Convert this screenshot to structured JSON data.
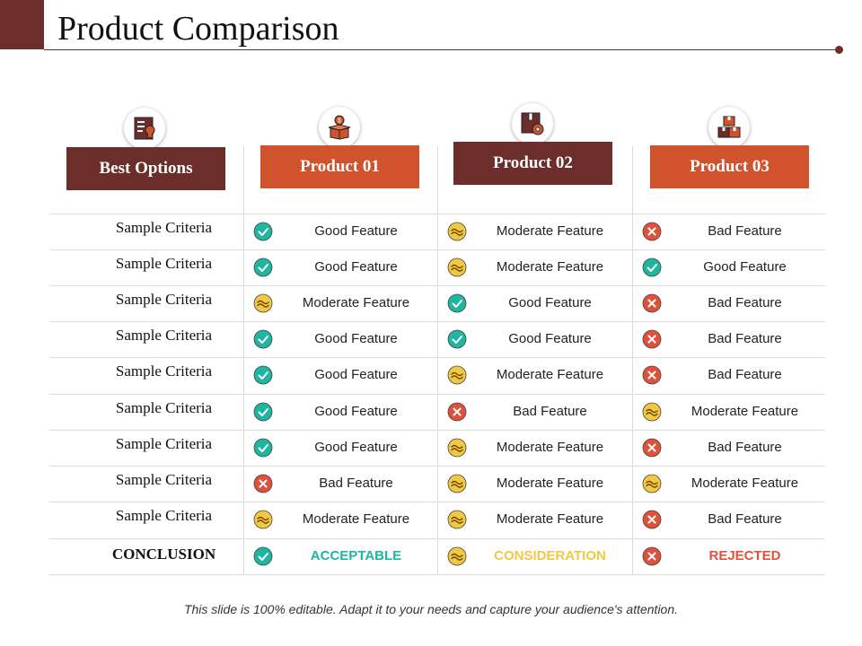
{
  "title": "Product Comparison",
  "headers": [
    {
      "label": "Best Options",
      "color": "#6b2e2a",
      "icon": "document-badge-icon"
    },
    {
      "label": "Product 01",
      "color": "#d0532e",
      "icon": "box-coin-icon"
    },
    {
      "label": "Product 02",
      "color": "#6b2e2a",
      "icon": "box-gear-icon"
    },
    {
      "label": "Product 03",
      "color": "#d0532e",
      "icon": "stacked-boxes-icon"
    }
  ],
  "rows": [
    {
      "criteria": "Sample Criteria",
      "cells": [
        {
          "status": "good",
          "text": "Good Feature"
        },
        {
          "status": "moderate",
          "text": "Moderate Feature"
        },
        {
          "status": "bad",
          "text": "Bad Feature"
        }
      ]
    },
    {
      "criteria": "Sample Criteria",
      "cells": [
        {
          "status": "good",
          "text": "Good Feature"
        },
        {
          "status": "moderate",
          "text": "Moderate Feature"
        },
        {
          "status": "good",
          "text": "Good Feature"
        }
      ]
    },
    {
      "criteria": "Sample Criteria",
      "cells": [
        {
          "status": "moderate",
          "text": "Moderate Feature"
        },
        {
          "status": "good",
          "text": "Good Feature"
        },
        {
          "status": "bad",
          "text": "Bad Feature"
        }
      ]
    },
    {
      "criteria": "Sample Criteria",
      "cells": [
        {
          "status": "good",
          "text": "Good Feature"
        },
        {
          "status": "good",
          "text": "Good Feature"
        },
        {
          "status": "bad",
          "text": "Bad Feature"
        }
      ]
    },
    {
      "criteria": "Sample Criteria",
      "cells": [
        {
          "status": "good",
          "text": "Good Feature"
        },
        {
          "status": "moderate",
          "text": "Moderate Feature"
        },
        {
          "status": "bad",
          "text": "Bad Feature"
        }
      ]
    },
    {
      "criteria": "Sample Criteria",
      "cells": [
        {
          "status": "good",
          "text": "Good Feature"
        },
        {
          "status": "bad",
          "text": "Bad Feature"
        },
        {
          "status": "moderate",
          "text": "Moderate Feature"
        }
      ]
    },
    {
      "criteria": "Sample Criteria",
      "cells": [
        {
          "status": "good",
          "text": "Good Feature"
        },
        {
          "status": "moderate",
          "text": "Moderate Feature"
        },
        {
          "status": "bad",
          "text": "Bad Feature"
        }
      ]
    },
    {
      "criteria": "Sample Criteria",
      "cells": [
        {
          "status": "bad",
          "text": "Bad Feature"
        },
        {
          "status": "moderate",
          "text": "Moderate Feature"
        },
        {
          "status": "moderate",
          "text": "Moderate Feature"
        }
      ]
    },
    {
      "criteria": "Sample Criteria",
      "cells": [
        {
          "status": "moderate",
          "text": "Moderate Feature"
        },
        {
          "status": "moderate",
          "text": "Moderate Feature"
        },
        {
          "status": "bad",
          "text": "Bad Feature"
        }
      ]
    }
  ],
  "conclusion": {
    "label": "CONCLUSION",
    "cells": [
      {
        "status": "good",
        "text": "ACCEPTABLE",
        "color": "#1fb5a0"
      },
      {
        "status": "moderate",
        "text": "CONSIDERATION",
        "color": "#f2c744"
      },
      {
        "status": "bad",
        "text": "REJECTED",
        "color": "#e0513b"
      }
    ]
  },
  "status_colors": {
    "good": "#1fb5a0",
    "moderate": "#f2c744",
    "bad": "#e0513b"
  },
  "status_icons": {
    "good": "check-icon",
    "moderate": "wave-icon",
    "bad": "cross-icon"
  },
  "footer": "This slide is 100% editable.  Adapt it to your needs and capture your audience's attention."
}
